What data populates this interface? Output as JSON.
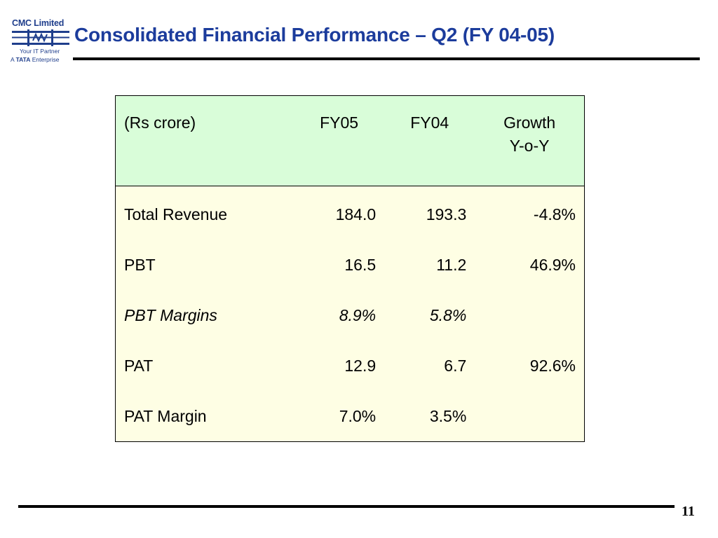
{
  "logo": {
    "name": "CMC Limited",
    "tagline": "Your IT Partner",
    "group_prefix": "A",
    "group_brand": "TATA",
    "group_suffix": "Enterprise"
  },
  "slide": {
    "title": "Consolidated Financial Performance – Q2 (FY 04-05)",
    "page_number": "11"
  },
  "table": {
    "headers": {
      "label": "(Rs crore)",
      "fy05": "FY05",
      "fy04": "FY04",
      "growth_line1": "Growth",
      "growth_line2": "Y-o-Y"
    },
    "rows": [
      {
        "label": "Total Revenue",
        "fy05": "184.0",
        "fy04": "193.3",
        "growth": "-4.8%"
      },
      {
        "label": "PBT",
        "fy05": "16.5",
        "fy04": "11.2",
        "growth": "46.9%"
      },
      {
        "label": "PBT Margins",
        "fy05": "8.9%",
        "fy04": "5.8%",
        "growth": ""
      },
      {
        "label": "PAT",
        "fy05": "12.9",
        "fy04": "6.7",
        "growth": "92.6%"
      },
      {
        "label": "PAT Margin",
        "fy05": "7.0%",
        "fy04": "3.5%",
        "growth": ""
      }
    ]
  },
  "colors": {
    "title": "#1c3c9c",
    "header_bg": "#d9fdd9",
    "body_bg": "#fefee4",
    "logo": "#1f3e8c"
  }
}
